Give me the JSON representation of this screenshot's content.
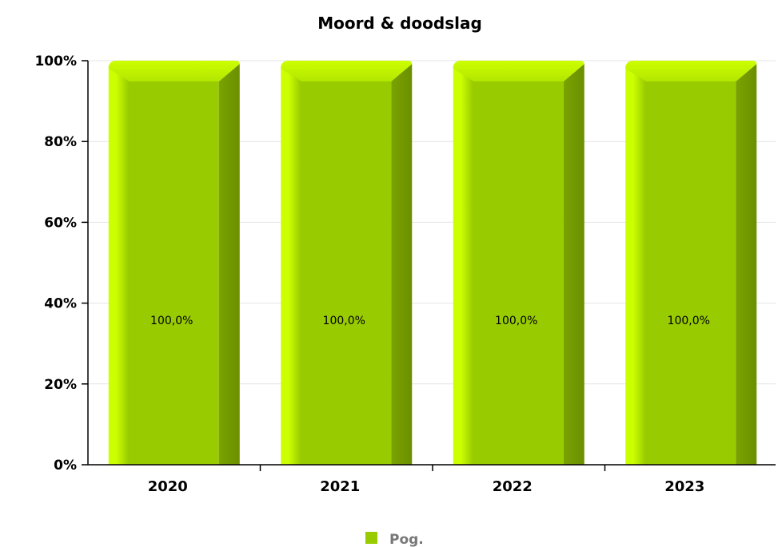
{
  "chart_data": {
    "type": "bar",
    "title": "Moord & doodslag",
    "categories": [
      "2020",
      "2021",
      "2022",
      "2023"
    ],
    "series": [
      {
        "name": "Pog.",
        "values": [
          100.0,
          100.0,
          100.0,
          100.0
        ],
        "labels": [
          "100,0%",
          "100,0%",
          "100,0%",
          "100,0%"
        ],
        "color": "#99cc00"
      }
    ],
    "yticks": [
      "0%",
      "20%",
      "40%",
      "60%",
      "80%",
      "100%"
    ],
    "ylim": [
      0,
      100
    ],
    "xlabel": "",
    "ylabel": "",
    "grid": true,
    "legend_position": "bottom-center"
  }
}
